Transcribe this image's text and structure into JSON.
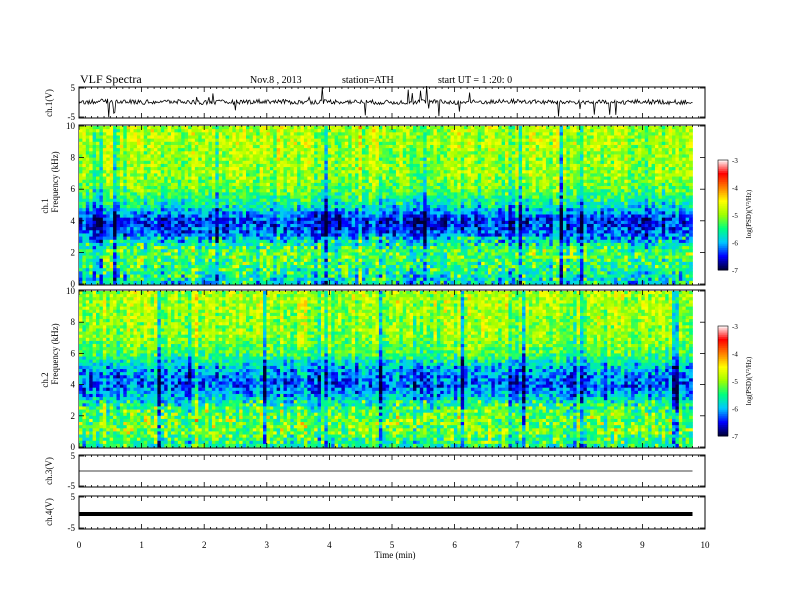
{
  "header": {
    "title": "VLF  Spectra",
    "date": "Nov.8  , 2013",
    "station": "station=ATH",
    "start": "start  UT  =   1  :20: 0"
  },
  "chart_data": [
    {
      "type": "line",
      "panel": "ch1-waveform",
      "ylabel": "ch.1(V)",
      "yticks": [
        "5",
        "-5"
      ],
      "ylim": [
        -5,
        5
      ],
      "x": [
        0.0,
        0.5,
        1.0,
        1.5,
        2.0,
        2.5,
        3.0,
        3.5,
        4.0,
        4.5,
        5.0,
        5.5,
        6.0,
        6.5,
        7.0,
        7.5,
        8.0,
        8.5,
        9.0,
        9.5,
        9.8
      ],
      "values": [
        0.2,
        0.5,
        0.1,
        0.3,
        0.0,
        0.2,
        0.4,
        0.1,
        0.3,
        0.2,
        0.0,
        0.3,
        0.1,
        0.2,
        0.4,
        0.1,
        0.2,
        0.0,
        0.3,
        0.1,
        0.2
      ],
      "line_color": "#000000"
    },
    {
      "type": "heatmap",
      "panel": "ch1-spectrogram",
      "ylabel": "ch.1\nFrequency  (kHz)",
      "yticks": [
        "0",
        "2",
        "4",
        "6",
        "8",
        "10"
      ],
      "ylim": [
        0,
        10
      ],
      "xlim": [
        0,
        10
      ],
      "colorbar": {
        "label": "log(PSD)(V²/Hz)",
        "ticks": [
          "-3",
          "-4",
          "-5",
          "-6",
          "-7"
        ],
        "range": [
          -7,
          -3
        ]
      },
      "freq_profile_log_psd": [
        {
          "f": 0.0,
          "v": -6.0
        },
        {
          "f": 0.5,
          "v": -5.8
        },
        {
          "f": 1.0,
          "v": -5.6
        },
        {
          "f": 2.0,
          "v": -5.4
        },
        {
          "f": 3.0,
          "v": -6.2
        },
        {
          "f": 4.0,
          "v": -6.5
        },
        {
          "f": 5.0,
          "v": -5.7
        },
        {
          "f": 6.0,
          "v": -5.2
        },
        {
          "f": 7.0,
          "v": -5.0
        },
        {
          "f": 8.0,
          "v": -5.0
        },
        {
          "f": 9.0,
          "v": -4.9
        },
        {
          "f": 10.0,
          "v": -4.9
        }
      ]
    },
    {
      "type": "heatmap",
      "panel": "ch2-spectrogram",
      "ylabel": "ch.2\nFrequency  (kHz)",
      "yticks": [
        "0",
        "2",
        "4",
        "6",
        "8",
        "10"
      ],
      "ylim": [
        0,
        10
      ],
      "xlim": [
        0,
        10
      ],
      "colorbar": {
        "label": "log(PSD)(V²/Hz)",
        "ticks": [
          "-3",
          "-4",
          "-5",
          "-6",
          "-7"
        ],
        "range": [
          -7,
          -3
        ]
      },
      "freq_profile_log_psd": [
        {
          "f": 0.0,
          "v": -5.7
        },
        {
          "f": 0.5,
          "v": -5.5
        },
        {
          "f": 1.0,
          "v": -5.3
        },
        {
          "f": 2.0,
          "v": -5.3
        },
        {
          "f": 3.0,
          "v": -5.8
        },
        {
          "f": 4.0,
          "v": -6.3
        },
        {
          "f": 5.0,
          "v": -6.0
        },
        {
          "f": 6.0,
          "v": -5.3
        },
        {
          "f": 7.0,
          "v": -5.0
        },
        {
          "f": 8.0,
          "v": -5.0
        },
        {
          "f": 9.0,
          "v": -4.9
        },
        {
          "f": 10.0,
          "v": -4.9
        }
      ]
    },
    {
      "type": "line",
      "panel": "ch3-waveform",
      "ylabel": "ch.3(V)",
      "yticks": [
        "5",
        "-5"
      ],
      "ylim": [
        -5,
        5
      ],
      "x": [
        0.0,
        9.8
      ],
      "values": [
        0.0,
        0.0
      ],
      "line_color": "#000000"
    },
    {
      "type": "line",
      "panel": "ch4-waveform",
      "ylabel": "ch.4(V)",
      "yticks": [
        "5",
        "-5"
      ],
      "ylim": [
        -5,
        5
      ],
      "x": [
        0.0,
        9.8
      ],
      "values": [
        -0.5,
        -0.5
      ],
      "line_color": "#000000",
      "line_thick": true
    }
  ],
  "xaxis": {
    "label": "Time  (min)",
    "ticks": [
      "0",
      "1",
      "2",
      "3",
      "4",
      "5",
      "6",
      "7",
      "8",
      "9",
      "10"
    ],
    "xlim": [
      0,
      10
    ]
  },
  "colors": {
    "colormap": [
      "#000033",
      "#0000ff",
      "#00c8ff",
      "#00ff80",
      "#9dff00",
      "#ffff00",
      "#ff8000",
      "#ff0000",
      "#ffffff"
    ]
  }
}
